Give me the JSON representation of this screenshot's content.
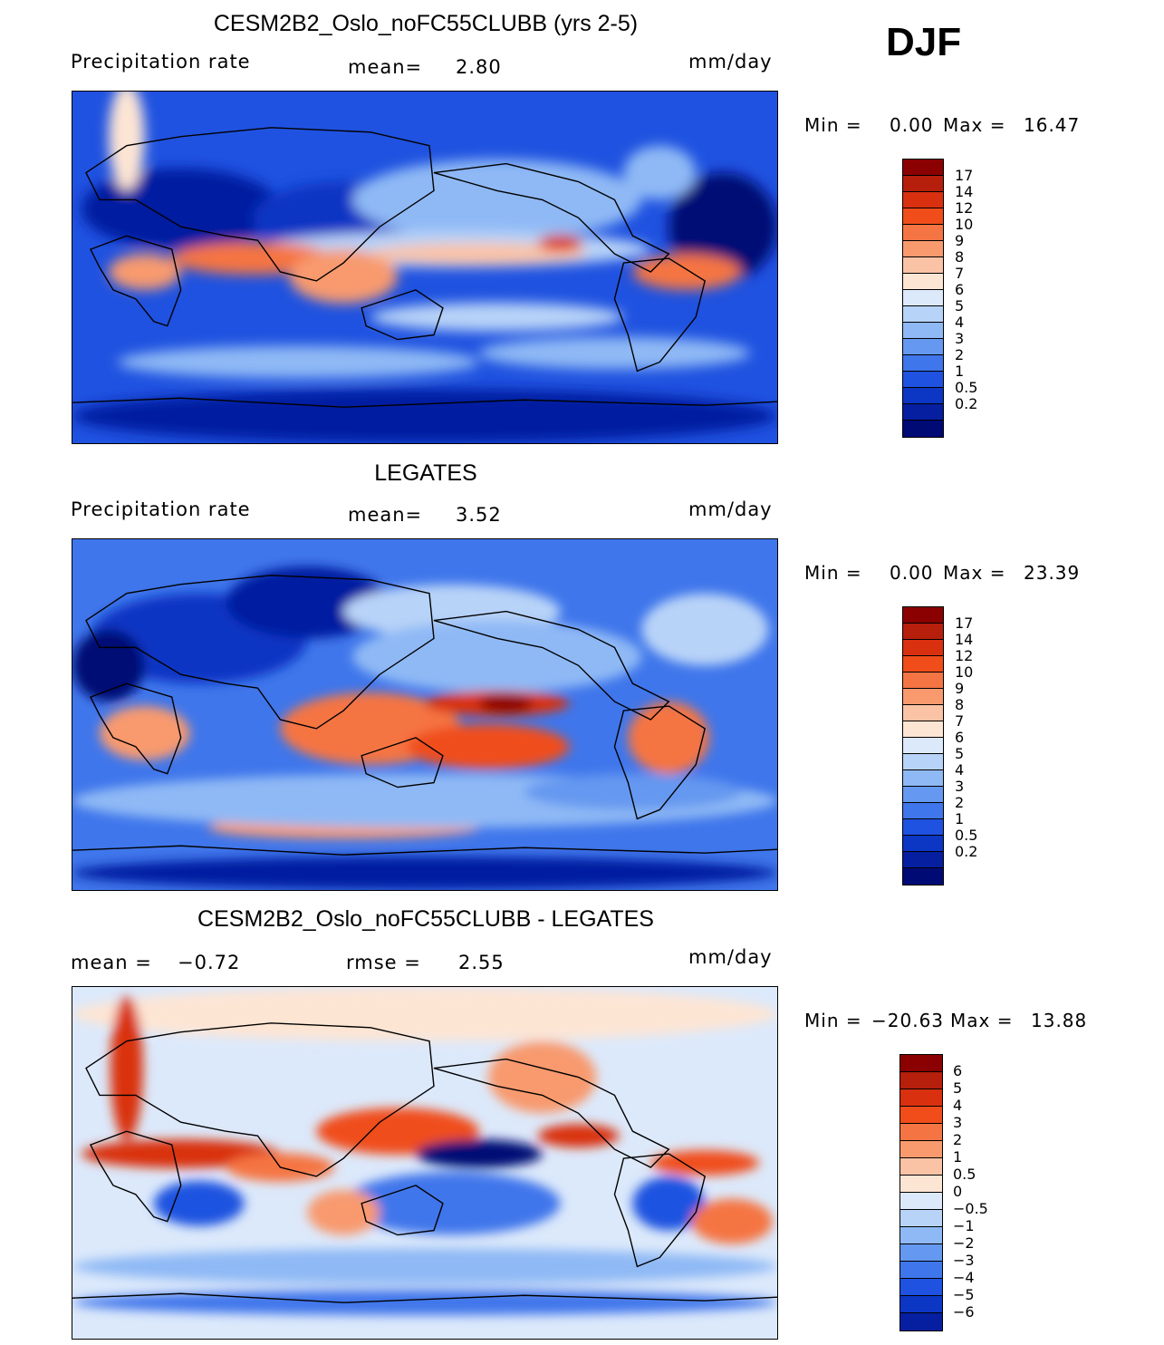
{
  "season": "DJF",
  "palettes": {
    "precip": [
      "#8b0000",
      "#b51f0c",
      "#d93010",
      "#f04d1a",
      "#f57443",
      "#f89a6e",
      "#fbc3a6",
      "#fde5d4",
      "#dce9fb",
      "#b8d3f8",
      "#8fb9f5",
      "#6598f0",
      "#3f76eb",
      "#1f52e0",
      "#0c36c4",
      "#061fa0",
      "#000a75"
    ],
    "diff": [
      "#8b0000",
      "#b51f0c",
      "#d93010",
      "#f04d1a",
      "#f57443",
      "#f89a6e",
      "#fbc3a6",
      "#fde5d4",
      "#dce9fb",
      "#b8d3f8",
      "#8fb9f5",
      "#6598f0",
      "#3f76eb",
      "#1f52e0",
      "#0c36c4",
      "#061fa0"
    ]
  },
  "panels": [
    {
      "title": "CESM2B2_Oslo_noFC55CLUBB (yrs 2-5)",
      "left_label": "Precipitation rate",
      "mean_label": "mean=",
      "mean_value": "2.80",
      "units": "mm/day",
      "min_label": "Min  =",
      "min_value": "0.00",
      "max_label": "Max  =",
      "max_value": "16.47",
      "colorbar_ticks": [
        "17",
        "14",
        "12",
        "10",
        "9",
        "8",
        "7",
        "6",
        "5",
        "4",
        "3",
        "2",
        "1",
        "0.5",
        "0.2"
      ]
    },
    {
      "title": "LEGATES",
      "left_label": "Precipitation rate",
      "mean_label": "mean=",
      "mean_value": "3.52",
      "units": "mm/day",
      "min_label": "Min  =",
      "min_value": "0.00",
      "max_label": "Max  =",
      "max_value": "23.39",
      "colorbar_ticks": [
        "17",
        "14",
        "12",
        "10",
        "9",
        "8",
        "7",
        "6",
        "5",
        "4",
        "3",
        "2",
        "1",
        "0.5",
        "0.2"
      ]
    },
    {
      "title": "CESM2B2_Oslo_noFC55CLUBB - LEGATES",
      "left_label": "mean  =",
      "mean_label": "rmse  =",
      "left_value": "−0.72",
      "mean_value": "2.55",
      "units": "mm/day",
      "min_label": "Min  =",
      "min_value": "−20.63",
      "max_label": "Max  =",
      "max_value": "13.88",
      "colorbar_ticks": [
        "6",
        "5",
        "4",
        "3",
        "2",
        "1",
        "0.5",
        "0",
        "−0.5",
        "−1",
        "−2",
        "−3",
        "−4",
        "−5",
        "−6"
      ]
    }
  ]
}
